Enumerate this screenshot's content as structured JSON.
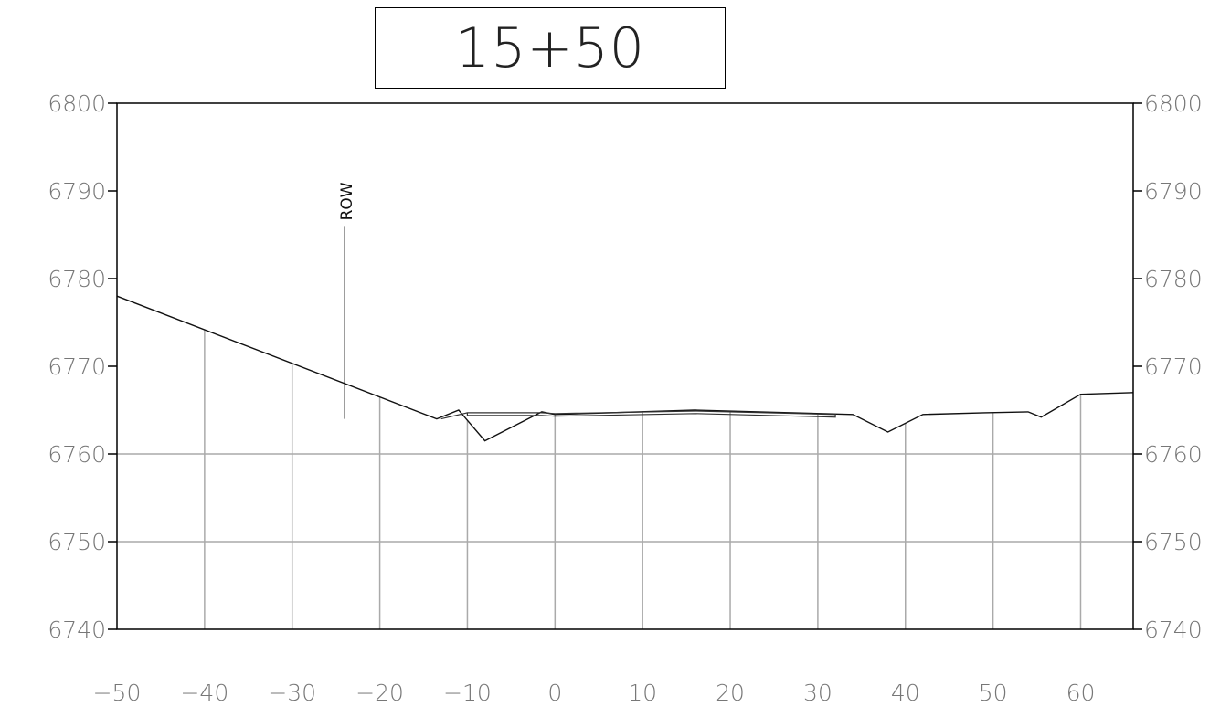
{
  "chart_data": {
    "type": "line",
    "title": "15+50",
    "xlabel": "",
    "ylabel": "",
    "xlim": [
      -50,
      66
    ],
    "ylim": [
      6740,
      6800
    ],
    "x_ticks": [
      -50,
      -40,
      -30,
      -20,
      -10,
      0,
      10,
      20,
      30,
      40,
      50,
      60
    ],
    "x_tick_labels": [
      "−50",
      "−40",
      "−30",
      "−20",
      "−10",
      "0",
      "10",
      "20",
      "30",
      "40",
      "50",
      "60"
    ],
    "y_ticks": [
      6740,
      6750,
      6760,
      6770,
      6780,
      6790,
      6800
    ],
    "y_tick_labels": [
      "6740",
      "6750",
      "6760",
      "6770",
      "6780",
      "6790",
      "6800"
    ],
    "grid": true,
    "annotations": [
      {
        "text": "ROW",
        "x": -24,
        "y_from": 6764,
        "y_to": 6786
      }
    ],
    "series": [
      {
        "x": [
          -50,
          -13.5,
          -11,
          -8,
          -1.5,
          0,
          16,
          34,
          38,
          42,
          49,
          54,
          55.5,
          60,
          66
        ],
        "y": [
          6778,
          6764,
          6765,
          6761.5,
          6764.8,
          6764.5,
          6765,
          6764.5,
          6762.5,
          6764.5,
          6764.7,
          6764.8,
          6764.2,
          6766.8,
          6767
        ]
      },
      {
        "x": [
          -13,
          -10,
          -1.5,
          0,
          16,
          32,
          32,
          16,
          0,
          -1.5,
          -10,
          -10
        ],
        "y": [
          6764,
          6764.7,
          6764.7,
          6764.6,
          6764.9,
          6764.5,
          6764.2,
          6764.6,
          6764.3,
          6764.4,
          6764.4,
          6764.7
        ]
      }
    ]
  }
}
